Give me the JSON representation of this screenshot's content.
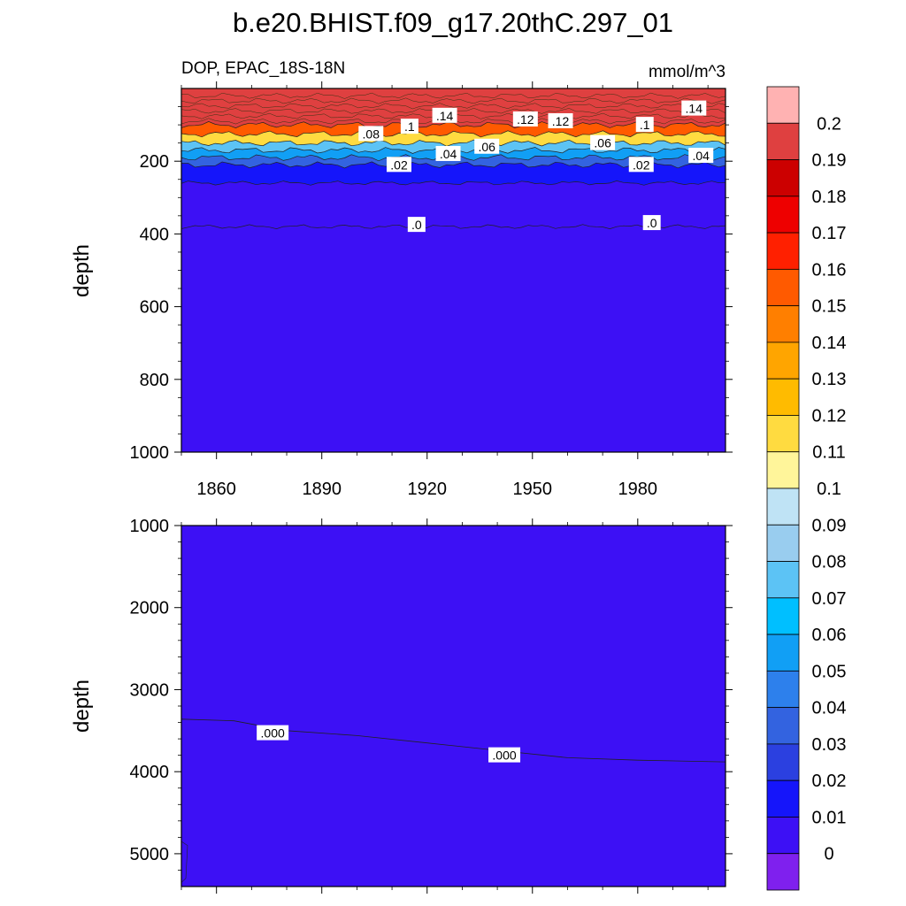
{
  "title": "b.e20.BHIST.f09_g17.20thC.297_01",
  "subtitle_left": "DOP, EPAC_18S-18N",
  "subtitle_right": "mmol/m^3",
  "chart_data": [
    {
      "type": "contour",
      "panel": "upper",
      "ylabel": "depth",
      "xlim": [
        1850,
        2005
      ],
      "ylim": [
        1000,
        0
      ],
      "x_ticks": [
        1860,
        1890,
        1920,
        1950,
        1980
      ],
      "y_ticks": [
        200,
        400,
        600,
        800,
        1000
      ],
      "bands": [
        {
          "top": 0,
          "bottom": 100,
          "value": 0.19
        },
        {
          "top": 100,
          "bottom": 125,
          "value": 0.15
        },
        {
          "top": 125,
          "bottom": 150,
          "value": 0.11
        },
        {
          "top": 150,
          "bottom": 170,
          "value": 0.07
        },
        {
          "top": 170,
          "bottom": 190,
          "value": 0.05
        },
        {
          "top": 190,
          "bottom": 210,
          "value": 0.03
        },
        {
          "top": 210,
          "bottom": 260,
          "value": 0.015
        },
        {
          "top": 260,
          "bottom": 380,
          "value": 0.005
        },
        {
          "top": 380,
          "bottom": 1000,
          "value": 0.0
        }
      ],
      "contour_labels": [
        {
          "text": ".08",
          "x": 1904,
          "y": 125
        },
        {
          "text": ".1",
          "x": 1915,
          "y": 105
        },
        {
          "text": ".14",
          "x": 1925,
          "y": 75
        },
        {
          "text": ".12",
          "x": 1948,
          "y": 85
        },
        {
          "text": ".12",
          "x": 1958,
          "y": 90
        },
        {
          "text": ".1",
          "x": 1982,
          "y": 100
        },
        {
          "text": ".14",
          "x": 1996,
          "y": 55
        },
        {
          "text": ".02",
          "x": 1912,
          "y": 210
        },
        {
          "text": ".04",
          "x": 1926,
          "y": 180
        },
        {
          "text": ".06",
          "x": 1937,
          "y": 160
        },
        {
          "text": ".06",
          "x": 1970,
          "y": 150
        },
        {
          "text": ".02",
          "x": 1981,
          "y": 210
        },
        {
          "text": ".04",
          "x": 1998,
          "y": 185
        },
        {
          "text": ".0",
          "x": 1917,
          "y": 375
        },
        {
          "text": ".0",
          "x": 1984,
          "y": 370
        }
      ]
    },
    {
      "type": "contour",
      "panel": "lower",
      "ylabel": "depth",
      "xlim": [
        1850,
        2005
      ],
      "ylim": [
        5400,
        1000
      ],
      "y_ticks": [
        1000,
        2000,
        3000,
        4000,
        5000
      ],
      "boundary_depths": {
        "x": [
          1850,
          1865,
          1880,
          1900,
          1920,
          1940,
          1960,
          1980,
          2005
        ],
        "depth": [
          3360,
          3380,
          3500,
          3560,
          3650,
          3740,
          3830,
          3860,
          3880
        ]
      },
      "values_above": 0.0,
      "values_below": 0.005,
      "contour_labels": [
        {
          "text": ".000",
          "x": 1876,
          "y": 3530
        },
        {
          "text": ".000",
          "x": 1942,
          "y": 3800
        }
      ]
    }
  ],
  "colorbar": {
    "labels": [
      "0.2",
      "0.19",
      "0.18",
      "0.17",
      "0.16",
      "0.15",
      "0.14",
      "0.13",
      "0.12",
      "0.11",
      "0.1",
      "0.09",
      "0.08",
      "0.07",
      "0.06",
      "0.05",
      "0.04",
      "0.03",
      "0.02",
      "0.01",
      "0"
    ],
    "colors": [
      "#ffb2b2",
      "#df4040",
      "#cc0000",
      "#ee0000",
      "#ff2000",
      "#ff5a00",
      "#ff7f00",
      "#ffa500",
      "#ffbb00",
      "#ffdb40",
      "#fff59a",
      "#bfe3f5",
      "#99cdef",
      "#5cc3f5",
      "#00bfff",
      "#119ff5",
      "#2d80ec",
      "#3363e0",
      "#2b40e0",
      "#1515fa",
      "#3d10f5",
      "#7f20ee"
    ]
  }
}
